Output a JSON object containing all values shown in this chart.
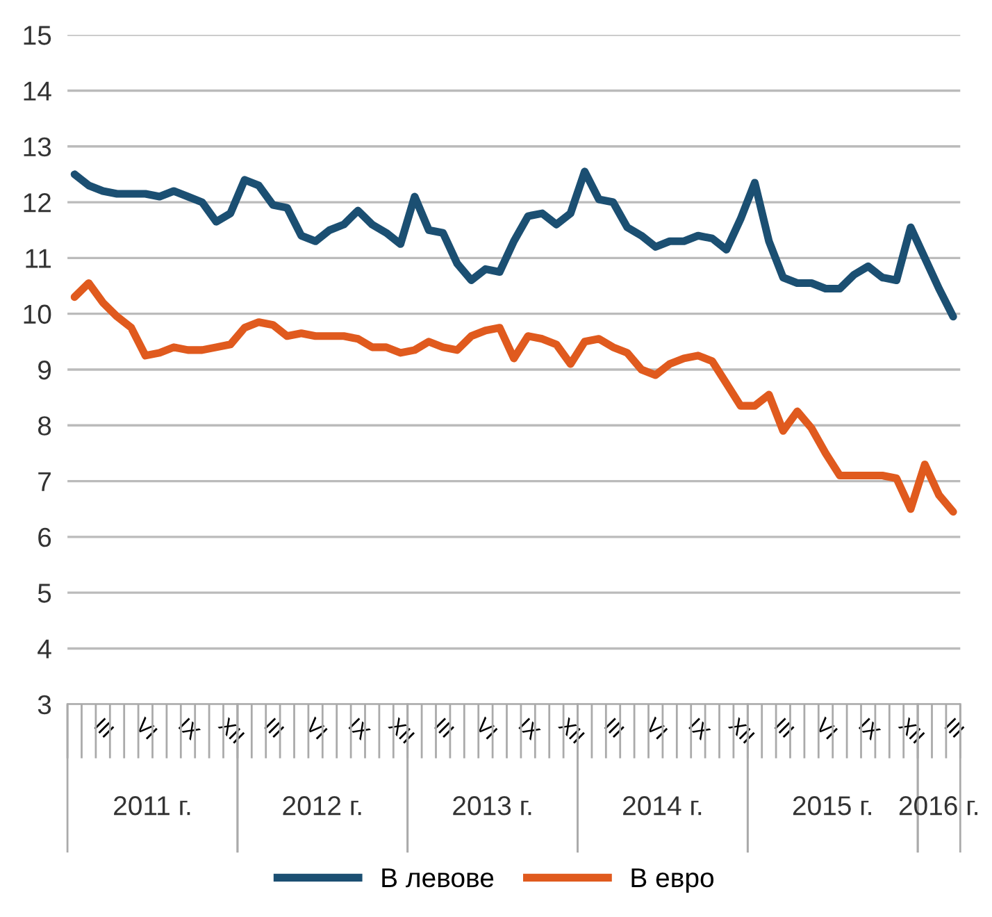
{
  "chart_data": {
    "type": "line",
    "categories": [
      null,
      null,
      "III",
      null,
      null,
      "VI",
      null,
      null,
      "IX",
      null,
      null,
      "XII",
      null,
      null,
      "III",
      null,
      null,
      "VI",
      null,
      null,
      "IX",
      null,
      null,
      "XII",
      null,
      null,
      "III",
      null,
      null,
      "VI",
      null,
      null,
      "IX",
      null,
      null,
      "XII",
      null,
      null,
      "III",
      null,
      null,
      "VI",
      null,
      null,
      "IX",
      null,
      null,
      "XII",
      null,
      null,
      "III",
      null,
      null,
      "VI",
      null,
      null,
      "IX",
      null,
      null,
      "XII",
      null,
      null,
      "III"
    ],
    "series": [
      {
        "name": "В левове",
        "color": "#1b4f72",
        "values": [
          12.5,
          12.3,
          12.2,
          12.15,
          12.15,
          12.15,
          12.1,
          12.2,
          12.1,
          12.0,
          11.65,
          11.8,
          12.4,
          12.3,
          11.95,
          11.9,
          11.4,
          11.3,
          11.5,
          11.6,
          11.85,
          11.6,
          11.45,
          11.25,
          12.1,
          11.5,
          11.45,
          10.9,
          10.6,
          10.8,
          10.75,
          11.3,
          11.75,
          11.8,
          11.6,
          11.8,
          12.55,
          12.05,
          12.0,
          11.55,
          11.4,
          11.2,
          11.3,
          11.3,
          11.4,
          11.35,
          11.15,
          11.7,
          12.35,
          11.3,
          10.65,
          10.55,
          10.55,
          10.45,
          10.45,
          10.7,
          10.85,
          10.65,
          10.6,
          11.55,
          11.0,
          10.45,
          9.95
        ]
      },
      {
        "name": "В евро",
        "color": "#e05a1e",
        "values": [
          10.3,
          10.55,
          10.2,
          9.95,
          9.75,
          9.25,
          9.3,
          9.4,
          9.35,
          9.35,
          9.4,
          9.45,
          9.75,
          9.85,
          9.8,
          9.6,
          9.65,
          9.6,
          9.6,
          9.6,
          9.55,
          9.4,
          9.4,
          9.3,
          9.35,
          9.5,
          9.4,
          9.35,
          9.6,
          9.7,
          9.75,
          9.2,
          9.6,
          9.55,
          9.45,
          9.1,
          9.5,
          9.55,
          9.4,
          9.3,
          9.0,
          8.9,
          9.1,
          9.2,
          9.25,
          9.15,
          8.75,
          8.35,
          8.35,
          8.55,
          7.9,
          8.25,
          7.95,
          7.5,
          7.1,
          7.1,
          7.1,
          7.1,
          7.05,
          6.5,
          7.3,
          6.75,
          6.45
        ]
      }
    ],
    "annotations": [
      "2011 г.",
      "2012 г.",
      "2013 г.",
      "2014 г.",
      "2015 г.",
      "2016 г."
    ],
    "ylim": [
      3,
      15
    ],
    "yticks": [
      3,
      4,
      5,
      6,
      7,
      8,
      9,
      10,
      11,
      12,
      13,
      14,
      15
    ],
    "grid": "y",
    "legend": "bottom",
    "marker": "none",
    "line_style": "solid"
  }
}
